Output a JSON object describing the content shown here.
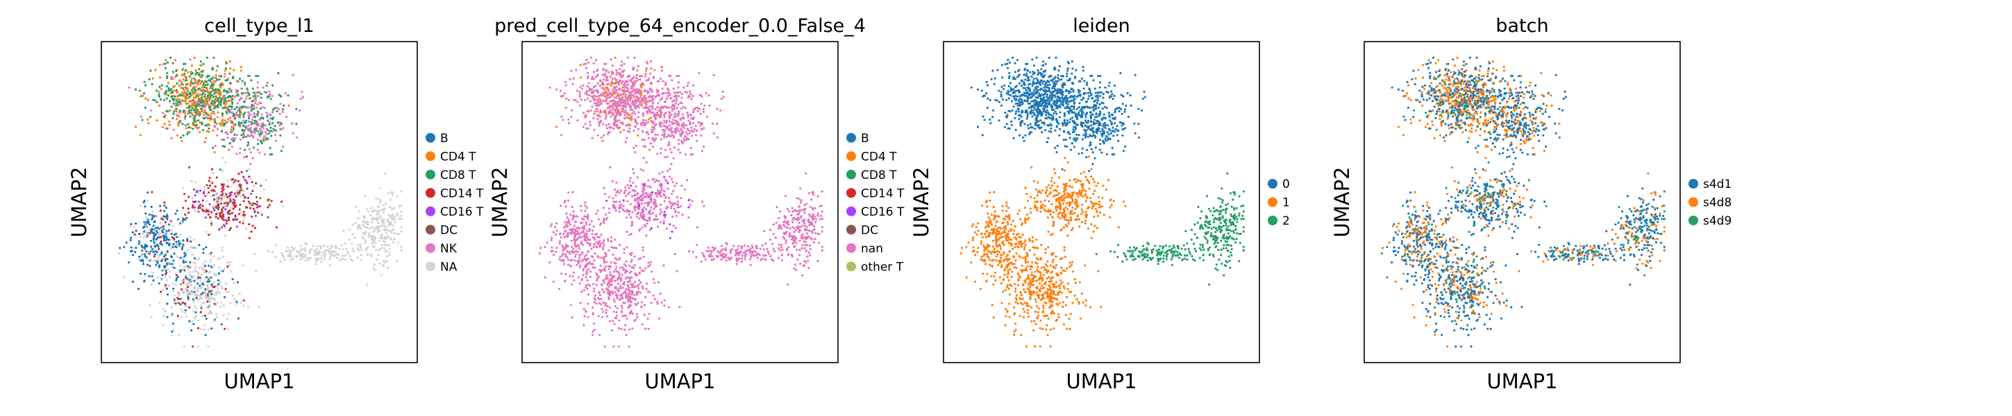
{
  "chart_data": [
    {
      "type": "scatter",
      "title": "cell_type_l1",
      "xlabel": "UMAP1",
      "ylabel": "UMAP2",
      "grid": false,
      "legend_position": "right",
      "legend": [
        {
          "label": "B",
          "color": "#1f77b4"
        },
        {
          "label": "CD4 T",
          "color": "#ff7f0e"
        },
        {
          "label": "CD8 T",
          "color": "#279e68"
        },
        {
          "label": "CD14 T",
          "color": "#d62728"
        },
        {
          "label": "CD16 T",
          "color": "#aa40fc"
        },
        {
          "label": "DC",
          "color": "#8c564b"
        },
        {
          "label": "NK",
          "color": "#e377c2"
        },
        {
          "label": "NA",
          "color": "#d3d3d3"
        }
      ]
    },
    {
      "type": "scatter",
      "title": "pred_cell_type_64_encoder_0.0_False_4",
      "xlabel": "UMAP1",
      "ylabel": "UMAP2",
      "grid": false,
      "legend_position": "right",
      "legend": [
        {
          "label": "B",
          "color": "#1f77b4"
        },
        {
          "label": "CD4 T",
          "color": "#ff7f0e"
        },
        {
          "label": "CD8 T",
          "color": "#279e68"
        },
        {
          "label": "CD14 T",
          "color": "#d62728"
        },
        {
          "label": "CD16 T",
          "color": "#aa40fc"
        },
        {
          "label": "DC",
          "color": "#8c564b"
        },
        {
          "label": "nan",
          "color": "#e377c2"
        },
        {
          "label": "other T",
          "color": "#b5bd61"
        }
      ]
    },
    {
      "type": "scatter",
      "title": "leiden",
      "xlabel": "UMAP1",
      "ylabel": "UMAP2",
      "grid": false,
      "legend_position": "right",
      "legend": [
        {
          "label": "0",
          "color": "#1f77b4"
        },
        {
          "label": "1",
          "color": "#ff7f0e"
        },
        {
          "label": "2",
          "color": "#279e68"
        }
      ]
    },
    {
      "type": "scatter",
      "title": "batch",
      "xlabel": "UMAP1",
      "ylabel": "UMAP2",
      "grid": false,
      "legend_position": "right",
      "legend": [
        {
          "label": "s4d1",
          "color": "#1f77b4"
        },
        {
          "label": "s4d8",
          "color": "#ff7f0e"
        },
        {
          "label": "s4d9",
          "color": "#279e68"
        }
      ]
    }
  ]
}
